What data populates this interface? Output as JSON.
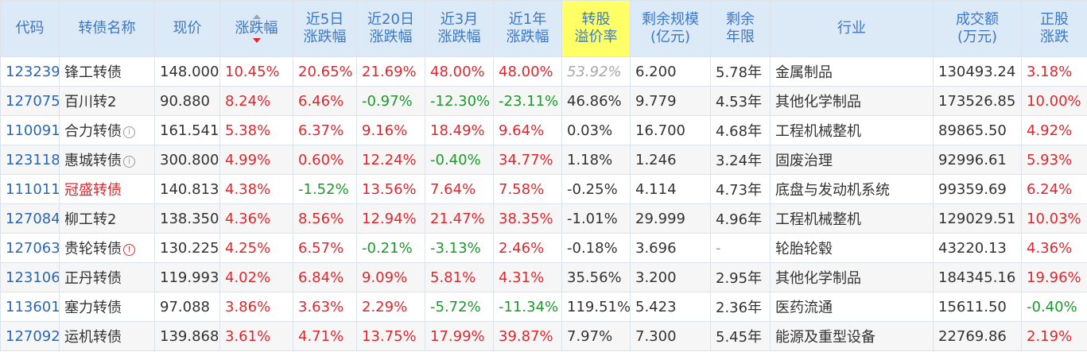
{
  "header": {
    "code": "代码",
    "name": "转债名称",
    "price": "现价",
    "change": "涨跌幅",
    "chg5d": [
      "近5日",
      "涨跌幅"
    ],
    "chg20d": [
      "近20日",
      "涨跌幅"
    ],
    "chg3m": [
      "近3月",
      "涨跌幅"
    ],
    "chg1y": [
      "近1年",
      "涨跌幅"
    ],
    "premium": [
      "转股",
      "溢价率"
    ],
    "remain_scale": [
      "剩余规模",
      "(亿元)"
    ],
    "remain_years": [
      "剩余",
      "年限"
    ],
    "industry": "行业",
    "volume": [
      "成交额",
      "(万元)"
    ],
    "stock_change": [
      "正股",
      "涨跌"
    ]
  },
  "colors": {
    "header_bg": "#dce9f6",
    "header_text": "#3c78c5",
    "highlight_bg": "#ffff66",
    "up": "#e0262d",
    "down": "#1a9b2a",
    "code": "#2a67b4"
  },
  "sort": {
    "column": "change",
    "direction": "desc"
  },
  "rows": [
    {
      "code": "123239",
      "name": "锋工转债",
      "icon": "",
      "name_red": false,
      "price": "148.000",
      "change": "10.45%",
      "chg5d": "20.65%",
      "chg20d": "21.69%",
      "chg3m": "48.00%",
      "chg1y": "48.00%",
      "premium": "53.92%",
      "premium_dim": true,
      "remain_scale": "6.200",
      "remain_years": "5.78年",
      "industry": "金属制品",
      "volume": "130493.24",
      "stock_change": "3.18%"
    },
    {
      "code": "127075",
      "name": "百川转2",
      "icon": "",
      "name_red": false,
      "price": "90.880",
      "change": "8.24%",
      "chg5d": "6.46%",
      "chg20d": "-0.97%",
      "chg3m": "-12.30%",
      "chg1y": "-23.11%",
      "premium": "46.86%",
      "premium_dim": false,
      "remain_scale": "9.779",
      "remain_years": "4.53年",
      "industry": "其他化学制品",
      "volume": "173526.85",
      "stock_change": "10.00%"
    },
    {
      "code": "110091",
      "name": "合力转债",
      "icon": "info",
      "name_red": false,
      "price": "161.541",
      "change": "5.38%",
      "chg5d": "6.37%",
      "chg20d": "9.16%",
      "chg3m": "18.49%",
      "chg1y": "9.64%",
      "premium": "0.03%",
      "premium_dim": false,
      "remain_scale": "16.700",
      "remain_years": "4.68年",
      "industry": "工程机械整机",
      "volume": "89865.50",
      "stock_change": "4.92%"
    },
    {
      "code": "123118",
      "name": "惠城转债",
      "icon": "info",
      "name_red": false,
      "price": "300.800",
      "change": "4.99%",
      "chg5d": "0.60%",
      "chg20d": "12.24%",
      "chg3m": "-0.40%",
      "chg1y": "34.77%",
      "premium": "1.18%",
      "premium_dim": false,
      "remain_scale": "1.246",
      "remain_years": "3.24年",
      "industry": "固废治理",
      "volume": "92996.61",
      "stock_change": "5.93%"
    },
    {
      "code": "111011",
      "name": "冠盛转债",
      "icon": "",
      "name_red": true,
      "price": "140.813",
      "change": "4.38%",
      "chg5d": "-1.52%",
      "chg20d": "13.56%",
      "chg3m": "7.64%",
      "chg1y": "7.58%",
      "premium": "-0.25%",
      "premium_dim": false,
      "remain_scale": "4.114",
      "remain_years": "4.73年",
      "industry": "底盘与发动机系统",
      "volume": "99359.69",
      "stock_change": "6.24%"
    },
    {
      "code": "127084",
      "name": "柳工转2",
      "icon": "",
      "name_red": false,
      "price": "138.350",
      "change": "4.36%",
      "chg5d": "8.56%",
      "chg20d": "12.94%",
      "chg3m": "21.47%",
      "chg1y": "38.35%",
      "premium": "-1.01%",
      "premium_dim": false,
      "remain_scale": "29.999",
      "remain_years": "4.96年",
      "industry": "工程机械整机",
      "volume": "129029.51",
      "stock_change": "10.03%"
    },
    {
      "code": "127063",
      "name": "贵轮转债",
      "icon": "warn",
      "name_red": false,
      "price": "130.225",
      "change": "4.25%",
      "chg5d": "6.57%",
      "chg20d": "-0.21%",
      "chg3m": "-3.13%",
      "chg1y": "2.46%",
      "premium": "-0.18%",
      "premium_dim": false,
      "remain_scale": "3.696",
      "remain_years": "-",
      "industry": "轮胎轮毂",
      "volume": "43220.13",
      "stock_change": "4.36%"
    },
    {
      "code": "123106",
      "name": "正丹转债",
      "icon": "",
      "name_red": false,
      "price": "119.993",
      "change": "4.02%",
      "chg5d": "6.84%",
      "chg20d": "9.09%",
      "chg3m": "5.81%",
      "chg1y": "4.31%",
      "premium": "35.56%",
      "premium_dim": false,
      "remain_scale": "3.200",
      "remain_years": "2.95年",
      "industry": "其他化学制品",
      "volume": "184345.16",
      "stock_change": "19.96%"
    },
    {
      "code": "113601",
      "name": "塞力转债",
      "icon": "",
      "name_red": false,
      "price": "97.088",
      "change": "3.86%",
      "chg5d": "3.63%",
      "chg20d": "2.29%",
      "chg3m": "-5.72%",
      "chg1y": "-11.34%",
      "premium": "119.51%",
      "premium_dim": false,
      "remain_scale": "5.423",
      "remain_years": "2.36年",
      "industry": "医药流通",
      "volume": "15611.50",
      "stock_change": "-0.40%"
    },
    {
      "code": "127092",
      "name": "运机转债",
      "icon": "",
      "name_red": false,
      "price": "139.868",
      "change": "3.61%",
      "chg5d": "4.71%",
      "chg20d": "13.75%",
      "chg3m": "17.99%",
      "chg1y": "39.87%",
      "premium": "7.97%",
      "premium_dim": false,
      "remain_scale": "7.300",
      "remain_years": "5.45年",
      "industry": "能源及重型设备",
      "volume": "22769.86",
      "stock_change": "2.19%"
    }
  ]
}
